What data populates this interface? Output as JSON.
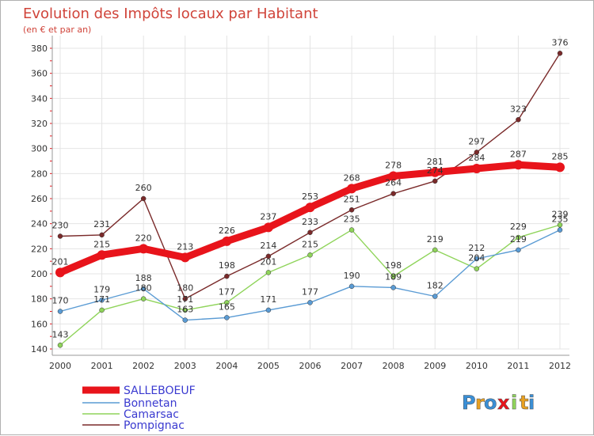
{
  "chart_data": {
    "type": "line",
    "title": "Evolution des Impôts locaux par Habitant",
    "subtitle": "(en € et par an)",
    "xlabel": "",
    "ylabel": "",
    "ylim": [
      140,
      380
    ],
    "yticks": [
      140,
      160,
      180,
      200,
      220,
      240,
      260,
      280,
      300,
      320,
      340,
      360,
      380
    ],
    "x": [
      "2000",
      "2001",
      "2002",
      "2003",
      "2004",
      "2005",
      "2006",
      "2007",
      "2008",
      "2009",
      "2010",
      "2011",
      "2012"
    ],
    "grid": true,
    "legend_position": "bottom-left",
    "series": [
      {
        "name": "SALLEBOEUF",
        "color": "#e8141b",
        "values": [
          201,
          215,
          220,
          213,
          226,
          237,
          253,
          268,
          278,
          281,
          284,
          287,
          285
        ],
        "labels": [
          "201",
          "215",
          "220",
          "213",
          "226",
          "237",
          "253",
          "268",
          "278",
          "281",
          "284",
          "287",
          "285"
        ]
      },
      {
        "name": "Bonnetan",
        "color": "#5a9bd4",
        "values": [
          170,
          179,
          188,
          163,
          165,
          171,
          177,
          190,
          189,
          182,
          212,
          219,
          235
        ],
        "labels": [
          "170",
          "179",
          "188",
          "163",
          "165",
          "171",
          "177",
          "190",
          "189",
          "182",
          "212",
          "219",
          "235"
        ]
      },
      {
        "name": "Camarsac",
        "color": "#8fd45a",
        "values": [
          143,
          171,
          180,
          171,
          177,
          201,
          215,
          235,
          198,
          219,
          204,
          229,
          239
        ],
        "labels": [
          "143",
          "171",
          "180",
          "171",
          "177",
          "201",
          "215",
          "235",
          "198",
          "219",
          "204",
          "229",
          "239"
        ]
      },
      {
        "name": "Pompignac",
        "color": "#7a2a2a",
        "values": [
          230,
          231,
          260,
          180,
          198,
          214,
          233,
          251,
          264,
          274,
          297,
          323,
          376
        ],
        "labels": [
          "230",
          "231",
          "260",
          "180",
          "198",
          "214",
          "233",
          "251",
          "264",
          "274",
          "297",
          "323",
          "376"
        ]
      }
    ]
  },
  "brand": {
    "letters": [
      "P",
      "r",
      "o",
      "x",
      "i",
      "t",
      "i"
    ],
    "colors": [
      "#3a8fd6",
      "#e8a020",
      "#3a8fd6",
      "#e8141b",
      "#8fd45a",
      "#e8a020",
      "#3a8fd6"
    ]
  }
}
